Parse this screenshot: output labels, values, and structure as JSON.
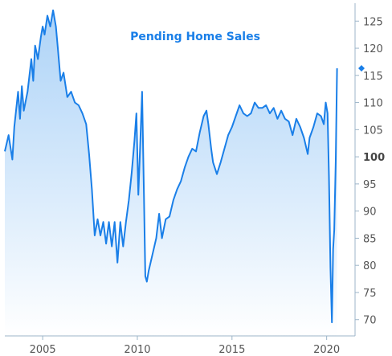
{
  "chart_data": {
    "type": "area",
    "title": "Pending Home Sales",
    "xlabel": "",
    "ylabel": "",
    "xlim": [
      2003.0,
      2021.5
    ],
    "ylim": [
      67,
      128
    ],
    "x_ticks": [
      2005,
      2010,
      2015,
      2020
    ],
    "x_tick_labels": [
      "2005",
      "2010",
      "2015",
      "2020"
    ],
    "y_ticks": [
      70,
      75,
      80,
      85,
      90,
      95,
      100,
      105,
      110,
      115,
      120,
      125
    ],
    "y_tick_labels": [
      "70",
      "75",
      "80",
      "85",
      "90",
      "95",
      "100",
      "105",
      "110",
      "115",
      "120",
      "125"
    ],
    "emphasized_tick": "100",
    "axis_side": "right",
    "grid": false,
    "last_value_marker": 116.3,
    "colors": {
      "line": "#1a7fe8",
      "fill_top": "#a9d1f7",
      "fill_bottom": "#ffffff",
      "title": "#1a7fe8",
      "axis": "#9cb4c8"
    },
    "series": [
      {
        "points": [
          [
            2003.0,
            101.0
          ],
          [
            2003.2,
            104.0
          ],
          [
            2003.4,
            99.5
          ],
          [
            2003.5,
            105.5
          ],
          [
            2003.7,
            112.0
          ],
          [
            2003.8,
            107.0
          ],
          [
            2003.9,
            113.0
          ],
          [
            2004.0,
            108.5
          ],
          [
            2004.2,
            112.0
          ],
          [
            2004.4,
            118.0
          ],
          [
            2004.5,
            114.0
          ],
          [
            2004.6,
            120.5
          ],
          [
            2004.75,
            118.0
          ],
          [
            2004.9,
            122.0
          ],
          [
            2005.0,
            124.0
          ],
          [
            2005.1,
            122.5
          ],
          [
            2005.25,
            126.0
          ],
          [
            2005.4,
            124.0
          ],
          [
            2005.55,
            127.0
          ],
          [
            2005.7,
            124.0
          ],
          [
            2005.8,
            120.0
          ],
          [
            2005.95,
            114.0
          ],
          [
            2006.1,
            115.5
          ],
          [
            2006.3,
            111.0
          ],
          [
            2006.5,
            112.0
          ],
          [
            2006.7,
            110.0
          ],
          [
            2006.9,
            109.5
          ],
          [
            2007.1,
            108.0
          ],
          [
            2007.3,
            106.0
          ],
          [
            2007.45,
            100.5
          ],
          [
            2007.6,
            94.0
          ],
          [
            2007.75,
            85.5
          ],
          [
            2007.9,
            88.5
          ],
          [
            2008.05,
            85.5
          ],
          [
            2008.2,
            88.0
          ],
          [
            2008.35,
            84.0
          ],
          [
            2008.5,
            88.0
          ],
          [
            2008.65,
            83.5
          ],
          [
            2008.8,
            88.0
          ],
          [
            2008.95,
            80.5
          ],
          [
            2009.1,
            88.0
          ],
          [
            2009.25,
            83.5
          ],
          [
            2009.4,
            88.0
          ],
          [
            2009.55,
            92.0
          ],
          [
            2009.7,
            97.0
          ],
          [
            2009.85,
            103.0
          ],
          [
            2009.95,
            108.0
          ],
          [
            2010.05,
            93.0
          ],
          [
            2010.15,
            102.0
          ],
          [
            2010.25,
            112.0
          ],
          [
            2010.35,
            93.0
          ],
          [
            2010.42,
            78.0
          ],
          [
            2010.5,
            77.0
          ],
          [
            2010.6,
            79.0
          ],
          [
            2010.8,
            82.0
          ],
          [
            2011.0,
            85.0
          ],
          [
            2011.15,
            89.5
          ],
          [
            2011.3,
            85.0
          ],
          [
            2011.5,
            88.5
          ],
          [
            2011.7,
            89.0
          ],
          [
            2011.9,
            92.0
          ],
          [
            2012.1,
            94.0
          ],
          [
            2012.3,
            95.5
          ],
          [
            2012.5,
            98.0
          ],
          [
            2012.7,
            100.0
          ],
          [
            2012.9,
            101.5
          ],
          [
            2013.1,
            101.0
          ],
          [
            2013.3,
            104.5
          ],
          [
            2013.5,
            107.5
          ],
          [
            2013.65,
            108.5
          ],
          [
            2013.75,
            106.0
          ],
          [
            2013.9,
            101.5
          ],
          [
            2014.0,
            99.0
          ],
          [
            2014.2,
            96.8
          ],
          [
            2014.4,
            99.0
          ],
          [
            2014.6,
            101.5
          ],
          [
            2014.8,
            104.0
          ],
          [
            2015.0,
            105.5
          ],
          [
            2015.2,
            107.5
          ],
          [
            2015.4,
            109.5
          ],
          [
            2015.6,
            108.0
          ],
          [
            2015.8,
            107.5
          ],
          [
            2016.0,
            108.0
          ],
          [
            2016.2,
            110.0
          ],
          [
            2016.4,
            109.0
          ],
          [
            2016.6,
            109.0
          ],
          [
            2016.8,
            109.5
          ],
          [
            2017.0,
            108.0
          ],
          [
            2017.2,
            109.0
          ],
          [
            2017.4,
            107.0
          ],
          [
            2017.6,
            108.5
          ],
          [
            2017.8,
            107.0
          ],
          [
            2018.0,
            106.5
          ],
          [
            2018.2,
            104.0
          ],
          [
            2018.4,
            107.0
          ],
          [
            2018.6,
            105.5
          ],
          [
            2018.8,
            103.5
          ],
          [
            2019.0,
            100.5
          ],
          [
            2019.1,
            103.5
          ],
          [
            2019.3,
            105.5
          ],
          [
            2019.5,
            108.0
          ],
          [
            2019.7,
            107.5
          ],
          [
            2019.85,
            106.0
          ],
          [
            2019.95,
            110.0
          ],
          [
            2020.05,
            108.0
          ],
          [
            2020.12,
            96.5
          ],
          [
            2020.2,
            79.5
          ],
          [
            2020.28,
            69.5
          ],
          [
            2020.34,
            83.0
          ],
          [
            2020.4,
            86.5
          ],
          [
            2020.48,
            99.5
          ],
          [
            2020.55,
            116.3
          ]
        ]
      }
    ]
  }
}
